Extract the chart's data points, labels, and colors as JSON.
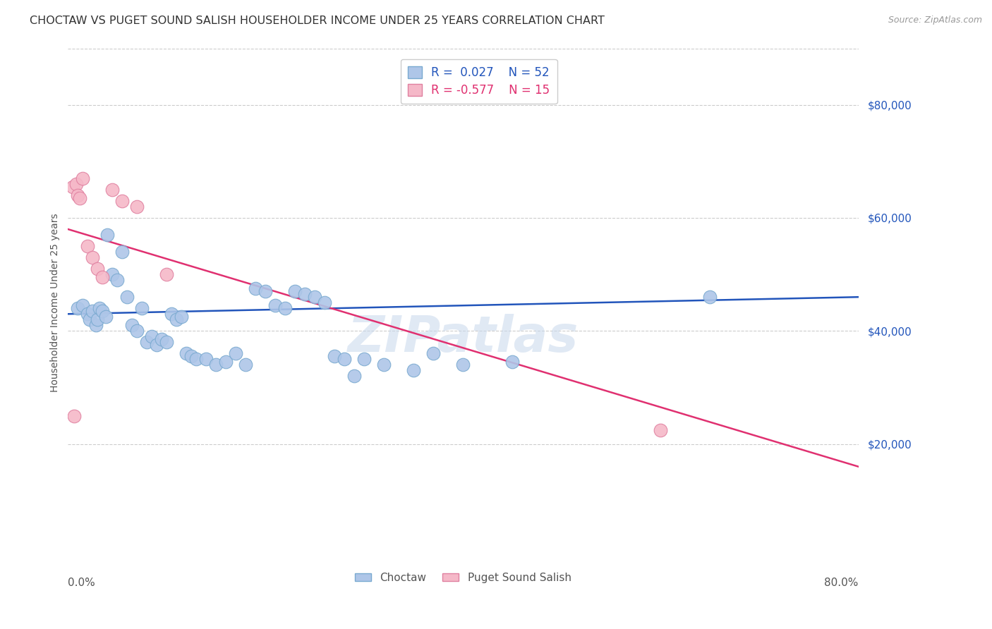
{
  "title": "CHOCTAW VS PUGET SOUND SALISH HOUSEHOLDER INCOME UNDER 25 YEARS CORRELATION CHART",
  "source": "Source: ZipAtlas.com",
  "ylabel": "Householder Income Under 25 years",
  "xlim": [
    0.0,
    80.0
  ],
  "ylim": [
    0,
    90000
  ],
  "yticks": [
    20000,
    40000,
    60000,
    80000
  ],
  "ytick_labels": [
    "$20,000",
    "$40,000",
    "$60,000",
    "$80,000"
  ],
  "legend_blue_r": "R =  0.027",
  "legend_blue_n": "N = 52",
  "legend_pink_r": "R = -0.577",
  "legend_pink_n": "N = 15",
  "choctaw_color": "#aec6e8",
  "choctaw_edge": "#7aaad0",
  "puget_color": "#f5b8c8",
  "puget_edge": "#e080a0",
  "blue_line_color": "#2255bb",
  "pink_line_color": "#e03070",
  "background_color": "#ffffff",
  "grid_color": "#cccccc",
  "watermark": "ZIPatlas",
  "choctaw_x": [
    1.0,
    1.5,
    2.0,
    2.2,
    2.5,
    2.8,
    3.0,
    3.2,
    3.5,
    3.8,
    4.0,
    4.5,
    5.0,
    5.5,
    6.0,
    6.5,
    7.0,
    7.5,
    8.0,
    8.5,
    9.0,
    9.5,
    10.0,
    10.5,
    11.0,
    11.5,
    12.0,
    12.5,
    13.0,
    14.0,
    15.0,
    16.0,
    17.0,
    18.0,
    19.0,
    20.0,
    21.0,
    22.0,
    23.0,
    24.0,
    25.0,
    26.0,
    27.0,
    28.0,
    29.0,
    30.0,
    32.0,
    35.0,
    37.0,
    40.0,
    45.0,
    65.0
  ],
  "choctaw_y": [
    44000,
    44500,
    43000,
    42000,
    43500,
    41000,
    42000,
    44000,
    43500,
    42500,
    57000,
    50000,
    49000,
    54000,
    46000,
    41000,
    40000,
    44000,
    38000,
    39000,
    37500,
    38500,
    38000,
    43000,
    42000,
    42500,
    36000,
    35500,
    35000,
    35000,
    34000,
    34500,
    36000,
    34000,
    47500,
    47000,
    44500,
    44000,
    47000,
    46500,
    46000,
    45000,
    35500,
    35000,
    32000,
    35000,
    34000,
    33000,
    36000,
    34000,
    34500,
    46000
  ],
  "puget_x": [
    0.5,
    0.8,
    1.0,
    1.2,
    1.5,
    2.0,
    2.5,
    3.0,
    3.5,
    4.5,
    5.5,
    7.0,
    10.0,
    60.0,
    0.6
  ],
  "puget_y": [
    65500,
    66000,
    64000,
    63500,
    67000,
    55000,
    53000,
    51000,
    49500,
    65000,
    63000,
    62000,
    50000,
    22500,
    25000
  ],
  "blue_trendline_x": [
    0.0,
    80.0
  ],
  "blue_trendline_y": [
    43000,
    46000
  ],
  "pink_trendline_x": [
    0.0,
    80.0
  ],
  "pink_trendline_y": [
    58000,
    16000
  ],
  "choctaw_label": "Choctaw",
  "puget_label": "Puget Sound Salish"
}
